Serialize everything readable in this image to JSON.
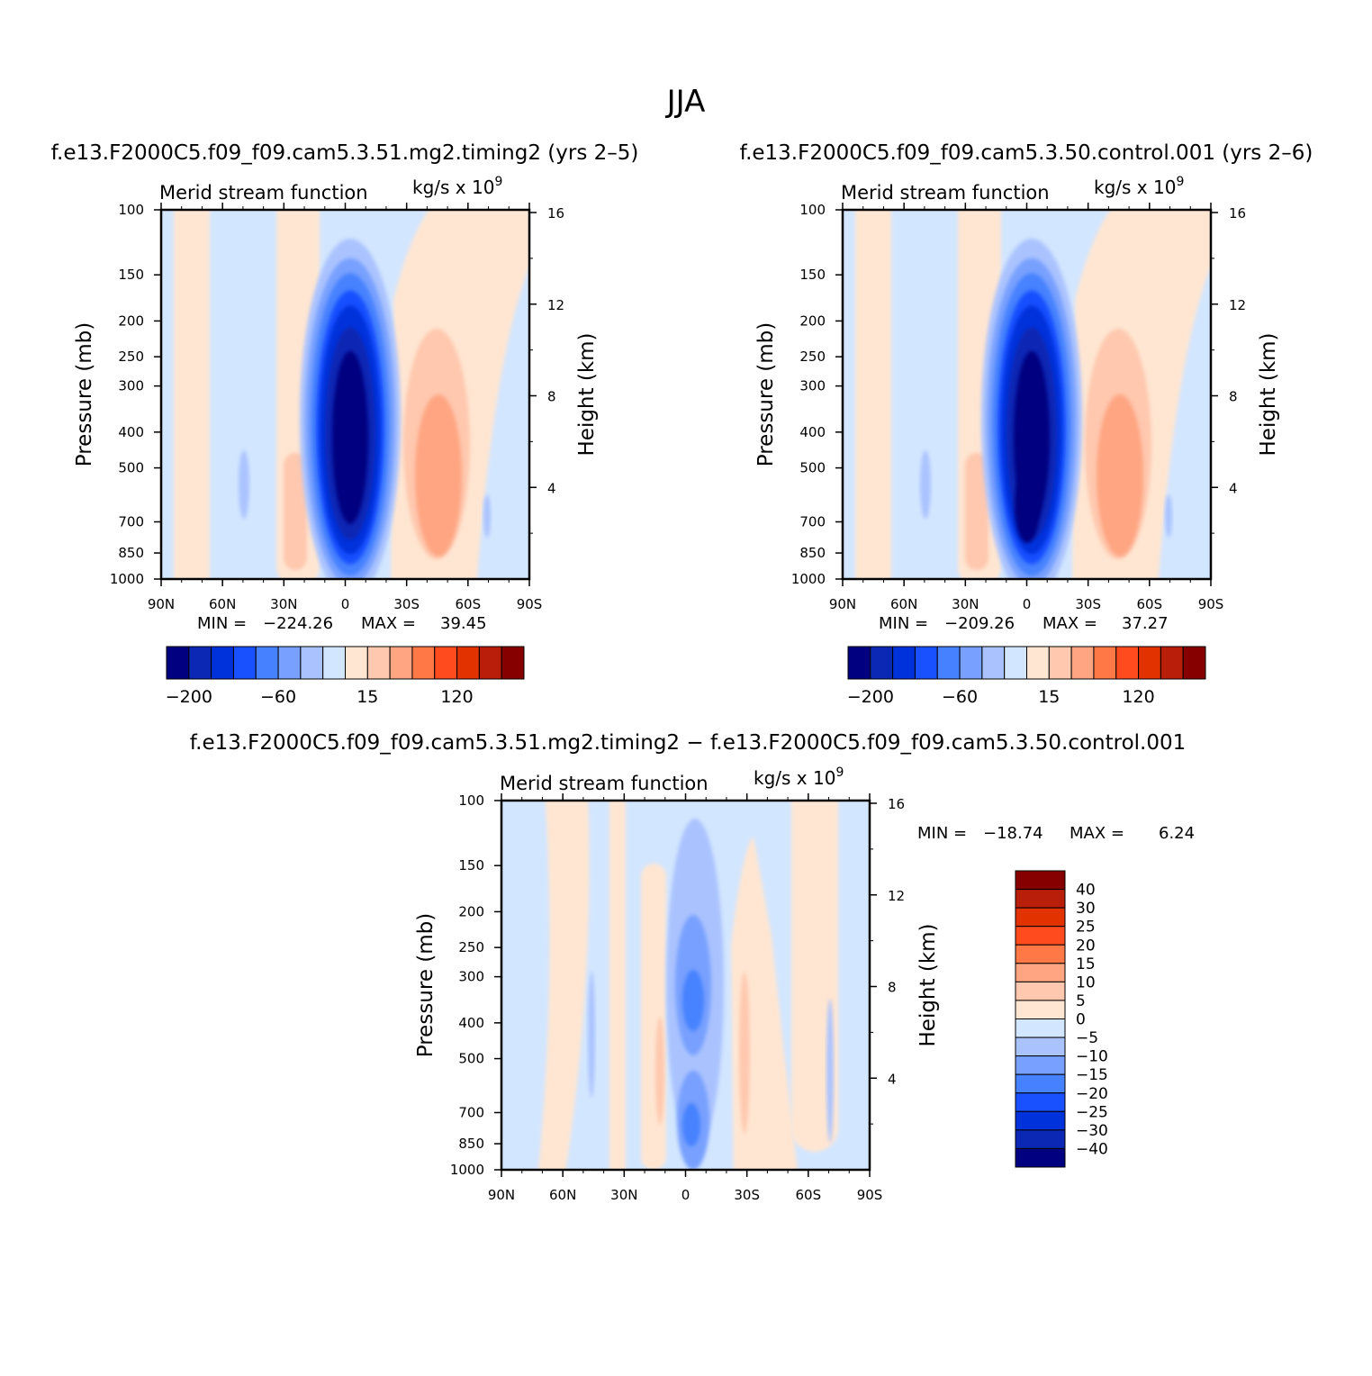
{
  "main_title": "JJA",
  "colors": {
    "main_levels": [
      "#000080",
      "#0a28b4",
      "#0032dc",
      "#1950ff",
      "#4682ff",
      "#78a0ff",
      "#aac3ff",
      "#d2e6ff",
      "#ffe6d2",
      "#ffc8af",
      "#ffa582",
      "#ff7846",
      "#ff4b1e",
      "#e13200",
      "#b91e0a",
      "#870000"
    ],
    "diff_levels": [
      "#000080",
      "#0a28b4",
      "#0032dc",
      "#1950ff",
      "#4682ff",
      "#78a0ff",
      "#aac3ff",
      "#d2e6ff",
      "#ffe6d2",
      "#ffc8af",
      "#ffa582",
      "#ff7846",
      "#ff4b1e",
      "#e13200",
      "#b91e0a",
      "#870000"
    ]
  },
  "chart_data": [
    {
      "type": "heatmap",
      "panel": "model",
      "subtitle": "f.e13.F2000C5.f09_f09.cam5.3.51.mg2.timing2 (yrs 2–5)",
      "variable": "Merid stream function",
      "units": "kg/s x 10",
      "units_exp": "9",
      "ylabel": "Pressure (mb)",
      "ylabel_right": "Height (km)",
      "x_ticks": [
        "90N",
        "60N",
        "30N",
        "0",
        "30S",
        "60S",
        "90S"
      ],
      "y_ticks": [
        "100",
        "150",
        "200",
        "250",
        "300",
        "400",
        "500",
        "700",
        "850",
        "1000"
      ],
      "y_ticks_right": [
        "16",
        "12",
        "8",
        "4"
      ],
      "xlim": [
        90,
        -90
      ],
      "ylim": [
        1000,
        100
      ],
      "min_label": "MIN =",
      "min_value": "−224.26",
      "max_label": "MAX =",
      "max_value": "39.45",
      "cells": [
        {
          "lat": 5,
          "p": 450,
          "value": -224
        },
        {
          "lat": 5,
          "p": 300,
          "value": -180
        },
        {
          "lat": -38,
          "p": 450,
          "value": 39
        },
        {
          "lat": -38,
          "p": 300,
          "value": 20
        },
        {
          "lat": -25,
          "p": 600,
          "value": 5
        },
        {
          "lat": -60,
          "p": 500,
          "value": -5
        }
      ],
      "colorbar_labels": [
        "−200",
        "−60",
        "15",
        "120"
      ]
    },
    {
      "type": "heatmap",
      "panel": "control",
      "subtitle": "f.e13.F2000C5.f09_f09.cam5.3.50.control.001 (yrs 2–6)",
      "variable": "Merid stream function",
      "units": "kg/s x 10",
      "units_exp": "9",
      "ylabel": "Pressure (mb)",
      "ylabel_right": "Height (km)",
      "x_ticks": [
        "90N",
        "60N",
        "30N",
        "0",
        "30S",
        "60S",
        "90S"
      ],
      "y_ticks": [
        "100",
        "150",
        "200",
        "250",
        "300",
        "400",
        "500",
        "700",
        "850",
        "1000"
      ],
      "y_ticks_right": [
        "16",
        "12",
        "8",
        "4"
      ],
      "xlim": [
        90,
        -90
      ],
      "ylim": [
        1000,
        100
      ],
      "min_label": "MIN =",
      "min_value": "−209.26",
      "max_label": "MAX =",
      "max_value": "37.27",
      "cells": [
        {
          "lat": 5,
          "p": 600,
          "value": -209
        },
        {
          "lat": 5,
          "p": 300,
          "value": -170
        },
        {
          "lat": -38,
          "p": 450,
          "value": 37
        },
        {
          "lat": -38,
          "p": 300,
          "value": 20
        },
        {
          "lat": -25,
          "p": 450,
          "value": 5
        },
        {
          "lat": -60,
          "p": 550,
          "value": -5
        }
      ],
      "colorbar_labels": [
        "−200",
        "−60",
        "15",
        "120"
      ]
    },
    {
      "type": "heatmap",
      "panel": "difference",
      "subtitle": "f.e13.F2000C5.f09_f09.cam5.3.51.mg2.timing2 − f.e13.F2000C5.f09_f09.cam5.3.50.control.001",
      "variable": "Merid stream function",
      "units": "kg/s x 10",
      "units_exp": "9",
      "ylabel": "Pressure (mb)",
      "ylabel_right": "Height (km)",
      "x_ticks": [
        "90N",
        "60N",
        "30N",
        "0",
        "30S",
        "60S",
        "90S"
      ],
      "y_ticks": [
        "100",
        "150",
        "200",
        "250",
        "300",
        "400",
        "500",
        "700",
        "850",
        "1000"
      ],
      "y_ticks_right": [
        "16",
        "12",
        "8",
        "4"
      ],
      "xlim": [
        90,
        -90
      ],
      "ylim": [
        1000,
        100
      ],
      "min_label": "MIN =",
      "min_value": "−18.74",
      "max_label": "MAX =",
      "max_value": "6.24",
      "cells": [
        {
          "lat": -3,
          "p": 350,
          "value": -18
        },
        {
          "lat": -3,
          "p": 700,
          "value": -15
        },
        {
          "lat": 10,
          "p": 500,
          "value": 5
        },
        {
          "lat": -30,
          "p": 400,
          "value": 5
        }
      ],
      "colorbar_labels": [
        "40",
        "30",
        "25",
        "20",
        "15",
        "10",
        "5",
        "0",
        "−5",
        "−10",
        "−15",
        "−20",
        "−25",
        "−30",
        "−40"
      ]
    }
  ]
}
